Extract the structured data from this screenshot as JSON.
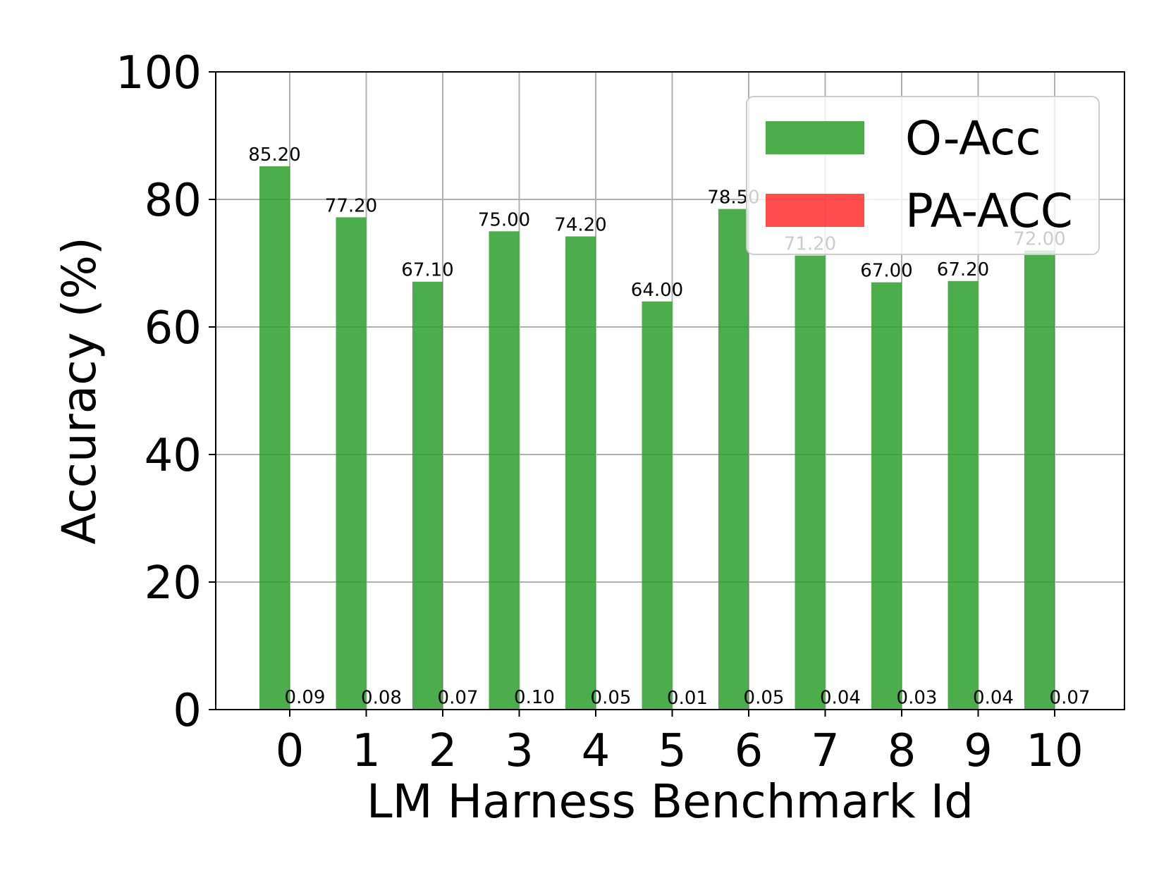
{
  "chart_data": {
    "type": "bar",
    "categories": [
      "0",
      "1",
      "2",
      "3",
      "4",
      "5",
      "6",
      "7",
      "8",
      "9",
      "10"
    ],
    "series": [
      {
        "name": "O-Acc",
        "color": "#2ca02c",
        "values": [
          85.2,
          77.2,
          67.1,
          75.0,
          74.2,
          64.0,
          78.5,
          71.2,
          67.0,
          67.2,
          72.0
        ],
        "labels": [
          "85.20",
          "77.20",
          "67.10",
          "75.00",
          "74.20",
          "64.00",
          "78.50",
          "71.20",
          "67.00",
          "67.20",
          "72.00"
        ]
      },
      {
        "name": "PA-ACC",
        "color": "#ff0000",
        "values": [
          0.09,
          0.08,
          0.07,
          0.1,
          0.05,
          0.01,
          0.05,
          0.04,
          0.03,
          0.04,
          0.07
        ],
        "labels": [
          "0.09",
          "0.08",
          "0.07",
          "0.10",
          "0.05",
          "0.01",
          "0.05",
          "0.04",
          "0.03",
          "0.04",
          "0.07"
        ]
      }
    ],
    "title": "",
    "xlabel": "LM Harness Benchmark Id",
    "ylabel": "Accuracy (%)",
    "ylim": [
      0,
      100
    ],
    "yticks": [
      "0",
      "20",
      "40",
      "60",
      "80",
      "100"
    ],
    "grid": true,
    "legend_position": "top-right"
  }
}
